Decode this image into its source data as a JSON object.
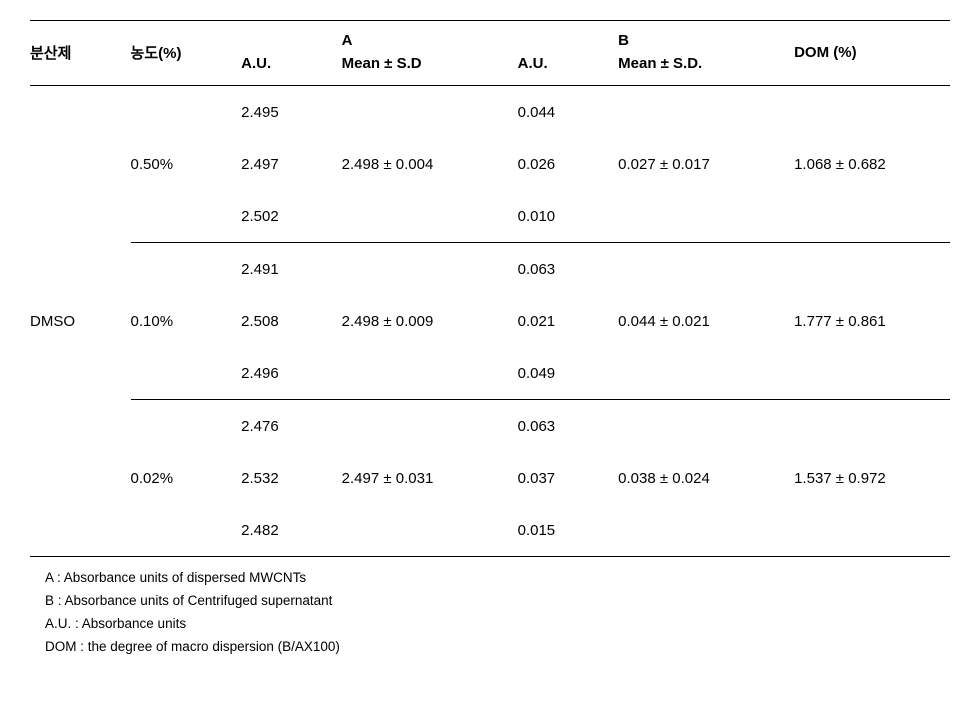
{
  "headers": {
    "dispersant": "분산제",
    "concentration": "농도(%)",
    "A_top": "A",
    "B_top": "B",
    "AU": "A.U.",
    "meanA": "Mean ± S.D",
    "meanB": "Mean ± S.D.",
    "DOM": "DOM (%)"
  },
  "dispersant": "DMSO",
  "groups": [
    {
      "conc": "0.50%",
      "rows": [
        {
          "a_au": "2.495",
          "b_au": "0.044"
        },
        {
          "a_au": "2.497",
          "b_au": "0.026"
        },
        {
          "a_au": "2.502",
          "b_au": "0.010"
        }
      ],
      "meanA": "2.498 ± 0.004",
      "meanB": "0.027 ± 0.017",
      "dom": "1.068 ± 0.682"
    },
    {
      "conc": "0.10%",
      "rows": [
        {
          "a_au": "2.491",
          "b_au": "0.063"
        },
        {
          "a_au": "2.508",
          "b_au": "0.021"
        },
        {
          "a_au": "2.496",
          "b_au": "0.049"
        }
      ],
      "meanA": "2.498 ± 0.009",
      "meanB": "0.044 ± 0.021",
      "dom": "1.777 ± 0.861"
    },
    {
      "conc": "0.02%",
      "rows": [
        {
          "a_au": "2.476",
          "b_au": "0.063"
        },
        {
          "a_au": "2.532",
          "b_au": "0.037"
        },
        {
          "a_au": "2.482",
          "b_au": "0.015"
        }
      ],
      "meanA": "2.497 ± 0.031",
      "meanB": "0.038 ± 0.024",
      "dom": "1.537 ± 0.972"
    }
  ],
  "notes": {
    "n1": "A : Absorbance units of dispersed MWCNTs",
    "n2": "B : Absorbance units of Centrifuged supernatant",
    "n3": "A.U. : Absorbance units",
    "n4": "DOM : the degree of macro dispersion (B/AX100)"
  }
}
